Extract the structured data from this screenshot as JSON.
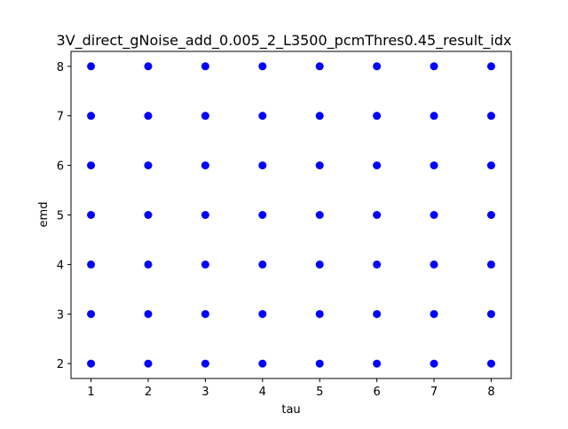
{
  "chart_data": {
    "type": "scatter",
    "title": "3V_direct_gNoise_add_0.005_2_L3500_pcmThres0.45_result_idx",
    "xlabel": "tau",
    "ylabel": "emd",
    "xlim": [
      0.65,
      8.35
    ],
    "ylim": [
      1.7,
      8.3
    ],
    "xticks": [
      1,
      2,
      3,
      4,
      5,
      6,
      7,
      8
    ],
    "yticks": [
      2,
      3,
      4,
      5,
      6,
      7,
      8
    ],
    "grid": false,
    "marker_color": "#0000ff",
    "points": [
      [
        1,
        2
      ],
      [
        1,
        3
      ],
      [
        1,
        4
      ],
      [
        1,
        5
      ],
      [
        1,
        6
      ],
      [
        1,
        7
      ],
      [
        1,
        8
      ],
      [
        2,
        2
      ],
      [
        2,
        3
      ],
      [
        2,
        4
      ],
      [
        2,
        5
      ],
      [
        2,
        6
      ],
      [
        2,
        7
      ],
      [
        2,
        8
      ],
      [
        3,
        2
      ],
      [
        3,
        3
      ],
      [
        3,
        4
      ],
      [
        3,
        5
      ],
      [
        3,
        6
      ],
      [
        3,
        7
      ],
      [
        3,
        8
      ],
      [
        4,
        2
      ],
      [
        4,
        3
      ],
      [
        4,
        4
      ],
      [
        4,
        5
      ],
      [
        4,
        6
      ],
      [
        4,
        7
      ],
      [
        4,
        8
      ],
      [
        5,
        2
      ],
      [
        5,
        3
      ],
      [
        5,
        4
      ],
      [
        5,
        5
      ],
      [
        5,
        6
      ],
      [
        5,
        7
      ],
      [
        5,
        8
      ],
      [
        6,
        2
      ],
      [
        6,
        3
      ],
      [
        6,
        4
      ],
      [
        6,
        5
      ],
      [
        6,
        6
      ],
      [
        6,
        7
      ],
      [
        6,
        8
      ],
      [
        7,
        2
      ],
      [
        7,
        3
      ],
      [
        7,
        4
      ],
      [
        7,
        5
      ],
      [
        7,
        6
      ],
      [
        7,
        7
      ],
      [
        7,
        8
      ],
      [
        8,
        2
      ],
      [
        8,
        3
      ],
      [
        8,
        4
      ],
      [
        8,
        5
      ],
      [
        8,
        6
      ],
      [
        8,
        7
      ],
      [
        8,
        8
      ]
    ]
  }
}
